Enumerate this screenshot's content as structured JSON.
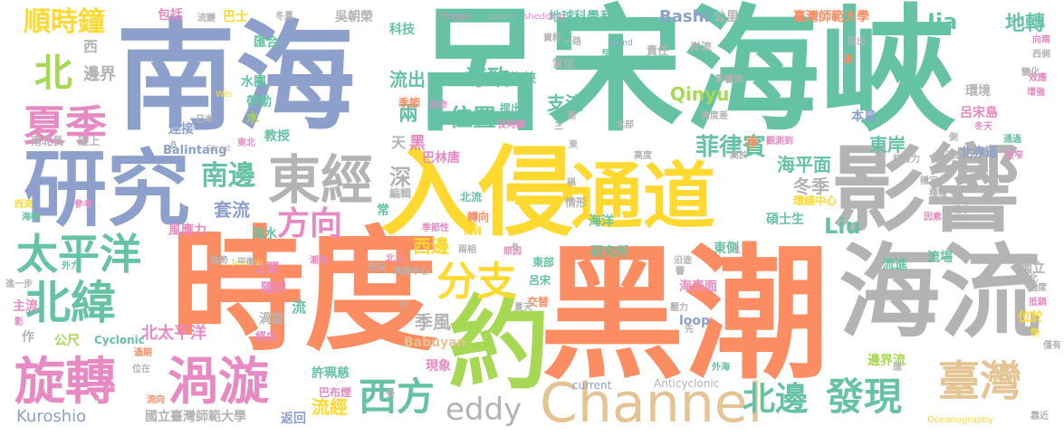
{
  "palette": {
    "green": "#66c2a5",
    "orange": "#fc8d62",
    "blue": "#8da0cb",
    "pink": "#e78ac3",
    "lime": "#a6d854",
    "yellow": "#ffd92f",
    "tan": "#e5c494",
    "gray": "#b3b3b3"
  },
  "words": [
    {
      "text": "呂宋海峽",
      "color": "green"
    },
    {
      "text": "南海",
      "color": "blue"
    },
    {
      "text": "黑潮",
      "color": "orange"
    },
    {
      "text": "時度",
      "color": "orange"
    },
    {
      "text": "入侵",
      "color": "yellow"
    },
    {
      "text": "影響",
      "color": "gray"
    },
    {
      "text": "海流",
      "color": "gray"
    },
    {
      "text": "研究",
      "color": "blue"
    },
    {
      "text": "通道",
      "color": "yellow"
    },
    {
      "text": "約",
      "color": "lime"
    },
    {
      "text": "Channel",
      "color": "tan"
    },
    {
      "text": "旋轉",
      "color": "pink"
    },
    {
      "text": "渦漩",
      "color": "pink"
    },
    {
      "text": "東經",
      "color": "gray"
    },
    {
      "text": "太平洋",
      "color": "green"
    },
    {
      "text": "北緯",
      "color": "green"
    },
    {
      "text": "夏季",
      "color": "pink"
    },
    {
      "text": "臺灣",
      "color": "tan"
    },
    {
      "text": "西方",
      "color": "green"
    },
    {
      "text": "發現",
      "color": "green"
    },
    {
      "text": "北邊",
      "color": "green"
    },
    {
      "text": "分支",
      "color": "yellow"
    },
    {
      "text": "方向",
      "color": "pink"
    },
    {
      "text": "南邊",
      "color": "green"
    },
    {
      "text": "eddy",
      "color": "gray"
    },
    {
      "text": "北",
      "color": "lime"
    },
    {
      "text": "順時鐘",
      "color": "yellow"
    },
    {
      "text": "Kuroshio",
      "color": "blue"
    },
    {
      "text": "北太平洋",
      "color": "pink"
    },
    {
      "text": "菲律賓",
      "color": "green"
    },
    {
      "text": "東岸",
      "color": "green"
    },
    {
      "text": "海平面",
      "color": "green"
    },
    {
      "text": "位置",
      "color": "green"
    },
    {
      "text": "導致",
      "color": "green"
    },
    {
      "text": "地轉",
      "color": "green"
    },
    {
      "text": "Jia",
      "color": "green"
    },
    {
      "text": "Liu",
      "color": "green"
    },
    {
      "text": "Qinyu",
      "color": "lime"
    },
    {
      "text": "冬季",
      "color": "gray"
    },
    {
      "text": "西邊",
      "color": "yellow"
    },
    {
      "text": "季風",
      "color": "gray"
    },
    {
      "text": "流經",
      "color": "yellow"
    },
    {
      "text": "套流",
      "color": "blue"
    },
    {
      "text": "深",
      "color": "gray"
    },
    {
      "text": "兩",
      "color": "green"
    },
    {
      "text": "流出",
      "color": "green"
    },
    {
      "text": "支流",
      "color": "green"
    },
    {
      "text": "Bashi",
      "color": "blue"
    },
    {
      "text": "公里",
      "color": "gray"
    },
    {
      "text": "臺灣師範大學",
      "color": "orange"
    },
    {
      "text": "地球科學系",
      "color": "green"
    },
    {
      "text": "吳朝榮",
      "color": "gray"
    },
    {
      "text": "科技",
      "color": "green"
    },
    {
      "text": "巴士",
      "color": "yellow"
    },
    {
      "text": "包括",
      "color": "pink"
    },
    {
      "text": "環境",
      "color": "gray"
    },
    {
      "text": "呂宋島",
      "color": "pink"
    },
    {
      "text": "本島",
      "color": "blue"
    },
    {
      "text": "海表面",
      "color": "pink"
    },
    {
      "text": "碩士生",
      "color": "green"
    },
    {
      "text": "東側",
      "color": "green"
    },
    {
      "text": "研究所",
      "color": "green"
    },
    {
      "text": "海洋",
      "color": "green"
    },
    {
      "text": "流場",
      "color": "green"
    },
    {
      "text": "國立",
      "color": "gray"
    },
    {
      "text": "位於",
      "color": "yellow"
    },
    {
      "text": "流進",
      "color": "green"
    },
    {
      "text": "邊界流",
      "color": "lime"
    },
    {
      "text": "Babuyan",
      "color": "tan"
    },
    {
      "text": "loop",
      "color": "blue"
    },
    {
      "text": "current",
      "color": "blue"
    },
    {
      "text": "Anticyclonic",
      "color": "gray"
    },
    {
      "text": "國立臺灣師範大學",
      "color": "gray"
    },
    {
      "text": "返回",
      "color": "blue"
    },
    {
      "text": "許珮慈",
      "color": "green"
    },
    {
      "text": "巴布煙",
      "color": "pink"
    },
    {
      "text": "現象",
      "color": "pink"
    },
    {
      "text": "巴林唐",
      "color": "pink"
    },
    {
      "text": "黑",
      "color": "pink"
    },
    {
      "text": "天",
      "color": "gray"
    },
    {
      "text": "邊界",
      "color": "gray"
    },
    {
      "text": "西",
      "color": "gray"
    },
    {
      "text": "匯合",
      "color": "green"
    },
    {
      "text": "水團",
      "color": "green"
    },
    {
      "text": "帶動",
      "color": "green"
    },
    {
      "text": "水",
      "color": "lime"
    },
    {
      "text": "連接",
      "color": "blue"
    },
    {
      "text": "日本",
      "color": "gray"
    },
    {
      "text": "南北長",
      "color": "gray"
    },
    {
      "text": "碰上",
      "color": "gray"
    },
    {
      "text": "教授",
      "color": "green"
    },
    {
      "text": "Balintang",
      "color": "blue"
    },
    {
      "text": "風應力",
      "color": "pink"
    },
    {
      "text": "海水",
      "color": "green"
    },
    {
      "text": "之間",
      "color": "pink"
    },
    {
      "text": "隨即",
      "color": "pink"
    },
    {
      "text": "渦旋",
      "color": "gray"
    },
    {
      "text": "經由",
      "color": "pink"
    },
    {
      "text": "流",
      "color": "green"
    },
    {
      "text": "主流",
      "color": "pink"
    },
    {
      "text": "公尺",
      "color": "lime"
    },
    {
      "text": "Cyclonic",
      "color": "green"
    },
    {
      "text": "作",
      "color": "gray"
    },
    {
      "text": "影",
      "color": "pink"
    },
    {
      "text": "進一步",
      "color": "gray"
    },
    {
      "text": "季節",
      "color": "orange"
    },
    {
      "text": "提出",
      "color": "green"
    },
    {
      "text": "臺灣海峽",
      "color": "green"
    },
    {
      "text": "早期",
      "color": "green"
    },
    {
      "text": "責任",
      "color": "gray"
    },
    {
      "text": "洋流",
      "color": "gray"
    },
    {
      "text": "季",
      "color": "orange"
    },
    {
      "text": "轉向",
      "color": "orange"
    },
    {
      "text": "交替",
      "color": "orange"
    },
    {
      "text": "東部",
      "color": "green"
    },
    {
      "text": "呂宋",
      "color": "green"
    },
    {
      "text": "常",
      "color": "green"
    },
    {
      "text": "北流",
      "color": "green"
    },
    {
      "text": "情形",
      "color": "gray"
    },
    {
      "text": "稱",
      "color": "gray"
    },
    {
      "text": "編輯",
      "color": "gray"
    },
    {
      "text": "Yinglai",
      "color": "pink"
    },
    {
      "text": "Luzon",
      "color": "gray"
    },
    {
      "text": "shedding",
      "color": "pink"
    },
    {
      "text": "bend",
      "color": "blue"
    },
    {
      "text": "Strait",
      "color": "gray"
    },
    {
      "text": "Wei",
      "color": "yellow"
    },
    {
      "text": "Journal",
      "color": "yellow"
    },
    {
      "text": "Oceanography",
      "color": "yellow"
    },
    {
      "text": "冬夏",
      "color": "gray"
    },
    {
      "text": "流變",
      "color": "gray"
    },
    {
      "text": "資料",
      "color": "gray"
    },
    {
      "text": "一路",
      "color": "gray"
    },
    {
      "text": "當位",
      "color": "gray"
    },
    {
      "text": "生命",
      "color": "pink"
    },
    {
      "text": "反時鐘",
      "color": "pink"
    },
    {
      "text": "北部",
      "color": "gray"
    },
    {
      "text": "潮",
      "color": "gray"
    },
    {
      "text": "高度",
      "color": "gray"
    },
    {
      "text": "觀測到",
      "color": "pink"
    },
    {
      "text": "高於",
      "color": "gray"
    },
    {
      "text": "北赤道",
      "color": "blue"
    },
    {
      "text": "通過",
      "color": "green"
    },
    {
      "text": "梯度力",
      "color": "gray"
    },
    {
      "text": "流速",
      "color": "gray"
    },
    {
      "text": "環繞中心",
      "color": "yellow"
    },
    {
      "text": "穩定",
      "color": "gray"
    },
    {
      "text": "種種",
      "color": "gray"
    },
    {
      "text": "縮小",
      "color": "gray"
    },
    {
      "text": "因素",
      "color": "pink"
    },
    {
      "text": "過度",
      "color": "gray"
    },
    {
      "text": "抵銷",
      "color": "pink"
    },
    {
      "text": "快",
      "color": "yellow"
    },
    {
      "text": "僅有",
      "color": "gray"
    },
    {
      "text": "靠近",
      "color": "gray"
    },
    {
      "text": "外海",
      "color": "green"
    },
    {
      "text": "壓力",
      "color": "gray"
    },
    {
      "text": "兩相",
      "color": "gray"
    },
    {
      "text": "流況",
      "color": "gray"
    },
    {
      "text": "原因",
      "color": "pink"
    },
    {
      "text": "北上",
      "color": "pink"
    },
    {
      "text": "渦漩中心",
      "color": "gray"
    },
    {
      "text": "潮海",
      "color": "pink"
    },
    {
      "text": "季節性",
      "color": "pink"
    },
    {
      "text": "微弱",
      "color": "yellow"
    },
    {
      "text": "西流",
      "color": "yellow"
    },
    {
      "text": "參考",
      "color": "pink"
    },
    {
      "text": "外力",
      "color": "green"
    },
    {
      "text": "強勢",
      "color": "gray"
    },
    {
      "text": "平衡",
      "color": "gray"
    },
    {
      "text": "流向",
      "color": "orange"
    },
    {
      "text": "位在",
      "color": "gray"
    },
    {
      "text": "過期",
      "color": "orange"
    },
    {
      "text": "受",
      "color": "gray"
    },
    {
      "text": "引",
      "color": "gray"
    },
    {
      "text": "夏天",
      "color": "gray"
    },
    {
      "text": "沿途",
      "color": "gray"
    },
    {
      "text": "響",
      "color": "gray"
    },
    {
      "text": "生",
      "color": "gray"
    },
    {
      "text": "先",
      "color": "gray"
    },
    {
      "text": "南北",
      "color": "gray"
    },
    {
      "text": "達",
      "color": "gray"
    },
    {
      "text": "冬天",
      "color": "pink"
    },
    {
      "text": "效應",
      "color": "pink"
    },
    {
      "text": "增強",
      "color": "pink"
    },
    {
      "text": "變化",
      "color": "gray"
    },
    {
      "text": "產",
      "color": "orange"
    },
    {
      "text": "指出",
      "color": "gray"
    },
    {
      "text": "向南",
      "color": "pink"
    },
    {
      "text": "西側",
      "color": "gray"
    },
    {
      "text": "影響到",
      "color": "gray"
    },
    {
      "text": "高度差",
      "color": "gray"
    },
    {
      "text": "至窄",
      "color": "pink"
    },
    {
      "text": "側",
      "color": "gray"
    },
    {
      "text": "東北",
      "color": "pink"
    },
    {
      "text": "β",
      "color": "gray"
    },
    {
      "text": "三",
      "color": "gray"
    },
    {
      "text": "東",
      "color": "gray"
    },
    {
      "text": "冬",
      "color": "gray"
    },
    {
      "text": "海峽",
      "color": "green"
    }
  ]
}
